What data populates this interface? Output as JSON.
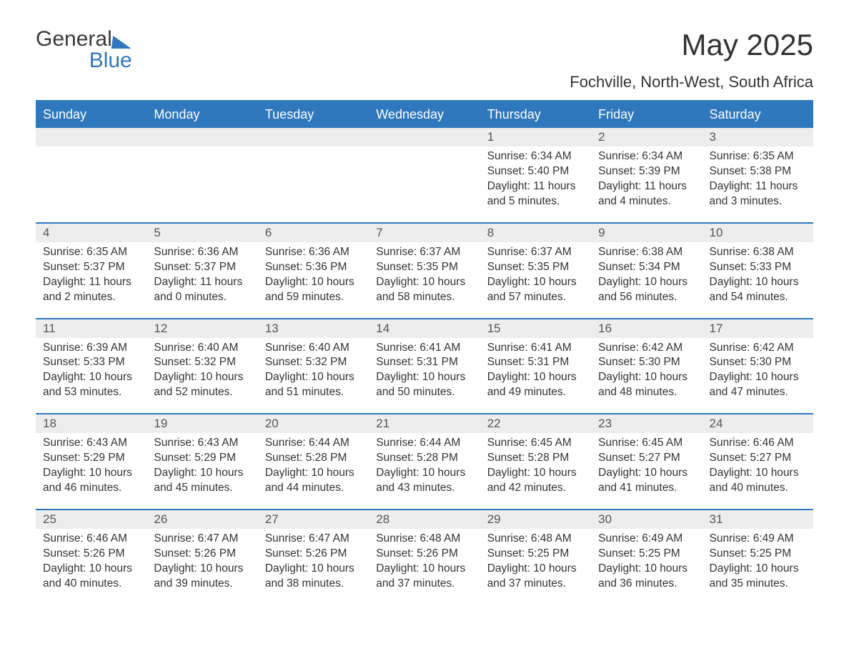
{
  "brand": {
    "part1": "General",
    "part2": "Blue"
  },
  "title": "May 2025",
  "location": "Fochville, North-West, South Africa",
  "colors": {
    "accent": "#2f78bd",
    "header_text": "#ffffff",
    "daynum_bg": "#ededed",
    "daynum_text": "#555555",
    "body_text": "#333333",
    "background": "#ffffff"
  },
  "typography": {
    "title_fontsize": 42,
    "location_fontsize": 22,
    "dow_fontsize": 18,
    "body_fontsize": 15.5
  },
  "calendar": {
    "type": "table",
    "days_of_week": [
      "Sunday",
      "Monday",
      "Tuesday",
      "Wednesday",
      "Thursday",
      "Friday",
      "Saturday"
    ],
    "weeks": [
      [
        {
          "empty": true
        },
        {
          "empty": true
        },
        {
          "empty": true
        },
        {
          "empty": true
        },
        {
          "day": "1",
          "sunrise": "Sunrise: 6:34 AM",
          "sunset": "Sunset: 5:40 PM",
          "daylight": "Daylight: 11 hours and 5 minutes."
        },
        {
          "day": "2",
          "sunrise": "Sunrise: 6:34 AM",
          "sunset": "Sunset: 5:39 PM",
          "daylight": "Daylight: 11 hours and 4 minutes."
        },
        {
          "day": "3",
          "sunrise": "Sunrise: 6:35 AM",
          "sunset": "Sunset: 5:38 PM",
          "daylight": "Daylight: 11 hours and 3 minutes."
        }
      ],
      [
        {
          "day": "4",
          "sunrise": "Sunrise: 6:35 AM",
          "sunset": "Sunset: 5:37 PM",
          "daylight": "Daylight: 11 hours and 2 minutes."
        },
        {
          "day": "5",
          "sunrise": "Sunrise: 6:36 AM",
          "sunset": "Sunset: 5:37 PM",
          "daylight": "Daylight: 11 hours and 0 minutes."
        },
        {
          "day": "6",
          "sunrise": "Sunrise: 6:36 AM",
          "sunset": "Sunset: 5:36 PM",
          "daylight": "Daylight: 10 hours and 59 minutes."
        },
        {
          "day": "7",
          "sunrise": "Sunrise: 6:37 AM",
          "sunset": "Sunset: 5:35 PM",
          "daylight": "Daylight: 10 hours and 58 minutes."
        },
        {
          "day": "8",
          "sunrise": "Sunrise: 6:37 AM",
          "sunset": "Sunset: 5:35 PM",
          "daylight": "Daylight: 10 hours and 57 minutes."
        },
        {
          "day": "9",
          "sunrise": "Sunrise: 6:38 AM",
          "sunset": "Sunset: 5:34 PM",
          "daylight": "Daylight: 10 hours and 56 minutes."
        },
        {
          "day": "10",
          "sunrise": "Sunrise: 6:38 AM",
          "sunset": "Sunset: 5:33 PM",
          "daylight": "Daylight: 10 hours and 54 minutes."
        }
      ],
      [
        {
          "day": "11",
          "sunrise": "Sunrise: 6:39 AM",
          "sunset": "Sunset: 5:33 PM",
          "daylight": "Daylight: 10 hours and 53 minutes."
        },
        {
          "day": "12",
          "sunrise": "Sunrise: 6:40 AM",
          "sunset": "Sunset: 5:32 PM",
          "daylight": "Daylight: 10 hours and 52 minutes."
        },
        {
          "day": "13",
          "sunrise": "Sunrise: 6:40 AM",
          "sunset": "Sunset: 5:32 PM",
          "daylight": "Daylight: 10 hours and 51 minutes."
        },
        {
          "day": "14",
          "sunrise": "Sunrise: 6:41 AM",
          "sunset": "Sunset: 5:31 PM",
          "daylight": "Daylight: 10 hours and 50 minutes."
        },
        {
          "day": "15",
          "sunrise": "Sunrise: 6:41 AM",
          "sunset": "Sunset: 5:31 PM",
          "daylight": "Daylight: 10 hours and 49 minutes."
        },
        {
          "day": "16",
          "sunrise": "Sunrise: 6:42 AM",
          "sunset": "Sunset: 5:30 PM",
          "daylight": "Daylight: 10 hours and 48 minutes."
        },
        {
          "day": "17",
          "sunrise": "Sunrise: 6:42 AM",
          "sunset": "Sunset: 5:30 PM",
          "daylight": "Daylight: 10 hours and 47 minutes."
        }
      ],
      [
        {
          "day": "18",
          "sunrise": "Sunrise: 6:43 AM",
          "sunset": "Sunset: 5:29 PM",
          "daylight": "Daylight: 10 hours and 46 minutes."
        },
        {
          "day": "19",
          "sunrise": "Sunrise: 6:43 AM",
          "sunset": "Sunset: 5:29 PM",
          "daylight": "Daylight: 10 hours and 45 minutes."
        },
        {
          "day": "20",
          "sunrise": "Sunrise: 6:44 AM",
          "sunset": "Sunset: 5:28 PM",
          "daylight": "Daylight: 10 hours and 44 minutes."
        },
        {
          "day": "21",
          "sunrise": "Sunrise: 6:44 AM",
          "sunset": "Sunset: 5:28 PM",
          "daylight": "Daylight: 10 hours and 43 minutes."
        },
        {
          "day": "22",
          "sunrise": "Sunrise: 6:45 AM",
          "sunset": "Sunset: 5:28 PM",
          "daylight": "Daylight: 10 hours and 42 minutes."
        },
        {
          "day": "23",
          "sunrise": "Sunrise: 6:45 AM",
          "sunset": "Sunset: 5:27 PM",
          "daylight": "Daylight: 10 hours and 41 minutes."
        },
        {
          "day": "24",
          "sunrise": "Sunrise: 6:46 AM",
          "sunset": "Sunset: 5:27 PM",
          "daylight": "Daylight: 10 hours and 40 minutes."
        }
      ],
      [
        {
          "day": "25",
          "sunrise": "Sunrise: 6:46 AM",
          "sunset": "Sunset: 5:26 PM",
          "daylight": "Daylight: 10 hours and 40 minutes."
        },
        {
          "day": "26",
          "sunrise": "Sunrise: 6:47 AM",
          "sunset": "Sunset: 5:26 PM",
          "daylight": "Daylight: 10 hours and 39 minutes."
        },
        {
          "day": "27",
          "sunrise": "Sunrise: 6:47 AM",
          "sunset": "Sunset: 5:26 PM",
          "daylight": "Daylight: 10 hours and 38 minutes."
        },
        {
          "day": "28",
          "sunrise": "Sunrise: 6:48 AM",
          "sunset": "Sunset: 5:26 PM",
          "daylight": "Daylight: 10 hours and 37 minutes."
        },
        {
          "day": "29",
          "sunrise": "Sunrise: 6:48 AM",
          "sunset": "Sunset: 5:25 PM",
          "daylight": "Daylight: 10 hours and 37 minutes."
        },
        {
          "day": "30",
          "sunrise": "Sunrise: 6:49 AM",
          "sunset": "Sunset: 5:25 PM",
          "daylight": "Daylight: 10 hours and 36 minutes."
        },
        {
          "day": "31",
          "sunrise": "Sunrise: 6:49 AM",
          "sunset": "Sunset: 5:25 PM",
          "daylight": "Daylight: 10 hours and 35 minutes."
        }
      ]
    ]
  }
}
